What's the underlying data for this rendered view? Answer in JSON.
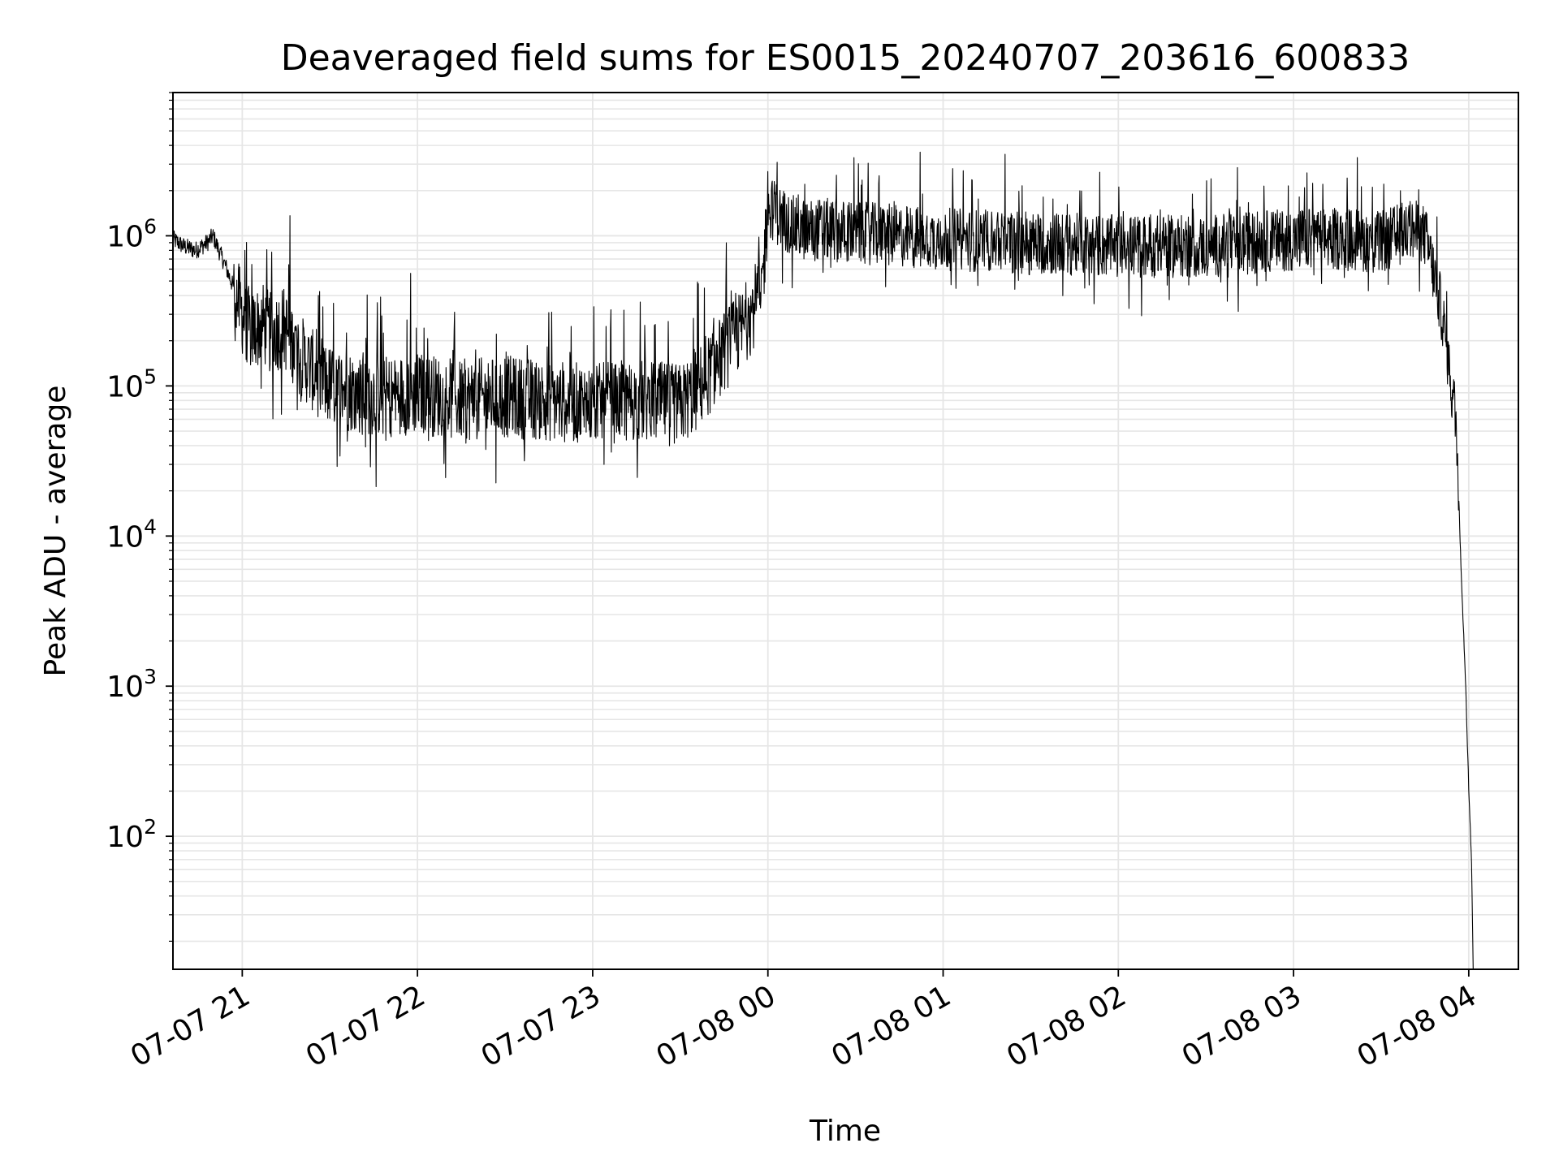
{
  "chart_data": {
    "type": "line",
    "title": "Deaveraged field sums for ES0015_20240707_203616_600833",
    "xlabel": "Time",
    "ylabel": "Peak ADU - average",
    "yscale": "log",
    "ylim": [
      13,
      9000000
    ],
    "xlim": [
      "2024-07-07T20:36:16",
      "2024-07-08T04:17:00"
    ],
    "grid": true,
    "line_color": "#000000",
    "grid_color": "#e6e6e6",
    "x_ticks": [
      {
        "label": "07-07 21",
        "value": "2024-07-07T21:00:00"
      },
      {
        "label": "07-07 22",
        "value": "2024-07-07T22:00:00"
      },
      {
        "label": "07-07 23",
        "value": "2024-07-07T23:00:00"
      },
      {
        "label": "07-08 00",
        "value": "2024-07-08T00:00:00"
      },
      {
        "label": "07-08 01",
        "value": "2024-07-08T01:00:00"
      },
      {
        "label": "07-08 02",
        "value": "2024-07-08T02:00:00"
      },
      {
        "label": "07-08 03",
        "value": "2024-07-08T03:00:00"
      },
      {
        "label": "07-08 04",
        "value": "2024-07-08T04:00:00"
      }
    ],
    "y_ticks": [
      {
        "base": "10",
        "exp": "2",
        "value": 100
      },
      {
        "base": "10",
        "exp": "3",
        "value": 1000
      },
      {
        "base": "10",
        "exp": "4",
        "value": 10000
      },
      {
        "base": "10",
        "exp": "5",
        "value": 100000
      },
      {
        "base": "10",
        "exp": "6",
        "value": 1000000
      }
    ],
    "series": [
      {
        "x": [
          "2024-07-07T20:36:16",
          "2024-07-07T20:40:00",
          "2024-07-07T20:44:00",
          "2024-07-07T20:48:00",
          "2024-07-07T20:50:00",
          "2024-07-07T20:52:00",
          "2024-07-07T20:54:00",
          "2024-07-07T20:57:00",
          "2024-07-07T21:00:00",
          "2024-07-07T21:03:00",
          "2024-07-07T21:07:00",
          "2024-07-07T21:10:00",
          "2024-07-07T21:14:00",
          "2024-07-07T21:17:00",
          "2024-07-07T21:20:00",
          "2024-07-07T21:25:00",
          "2024-07-07T21:30:00",
          "2024-07-07T21:40:00",
          "2024-07-07T21:50:00",
          "2024-07-07T22:00:00",
          "2024-07-07T22:15:00",
          "2024-07-07T22:30:00",
          "2024-07-07T22:45:00",
          "2024-07-07T23:00:00",
          "2024-07-07T23:15:00",
          "2024-07-07T23:30:00",
          "2024-07-07T23:35:00",
          "2024-07-07T23:40:00",
          "2024-07-07T23:45:00",
          "2024-07-07T23:50:00",
          "2024-07-07T23:54:00",
          "2024-07-07T23:58:00",
          "2024-07-08T00:00:00",
          "2024-07-08T00:05:00",
          "2024-07-08T00:10:00",
          "2024-07-08T00:20:00",
          "2024-07-08T00:30:00",
          "2024-07-08T01:00:00",
          "2024-07-08T01:30:00",
          "2024-07-08T02:00:00",
          "2024-07-08T02:30:00",
          "2024-07-08T03:00:00",
          "2024-07-08T03:20:00",
          "2024-07-08T03:30:00",
          "2024-07-08T03:40:00",
          "2024-07-08T03:45:00",
          "2024-07-08T03:47:00",
          "2024-07-08T03:49:00",
          "2024-07-08T03:51:00",
          "2024-07-08T03:52:00",
          "2024-07-08T03:53:00",
          "2024-07-08T03:54:00",
          "2024-07-08T03:55:00",
          "2024-07-08T03:56:00",
          "2024-07-08T03:57:00",
          "2024-07-08T03:58:00",
          "2024-07-08T03:59:00",
          "2024-07-08T04:00:00",
          "2024-07-08T04:00:30",
          "2024-07-08T04:01:00",
          "2024-07-08T04:01:30"
        ],
        "y": [
          950000,
          850000,
          800000,
          900000,
          1000000,
          800000,
          650000,
          450000,
          300000,
          230000,
          260000,
          220000,
          250000,
          200000,
          160000,
          120000,
          100000,
          90000,
          85000,
          90000,
          80000,
          85000,
          80000,
          75000,
          80000,
          75000,
          90000,
          120000,
          170000,
          220000,
          300000,
          450000,
          1600000,
          1300000,
          1100000,
          1100000,
          1050000,
          950000,
          900000,
          850000,
          850000,
          950000,
          950000,
          900000,
          1100000,
          1000000,
          700000,
          450000,
          300000,
          200000,
          150000,
          100000,
          75000,
          45000,
          10000,
          3000,
          1000,
          200,
          120,
          60,
          13
        ]
      }
    ]
  }
}
